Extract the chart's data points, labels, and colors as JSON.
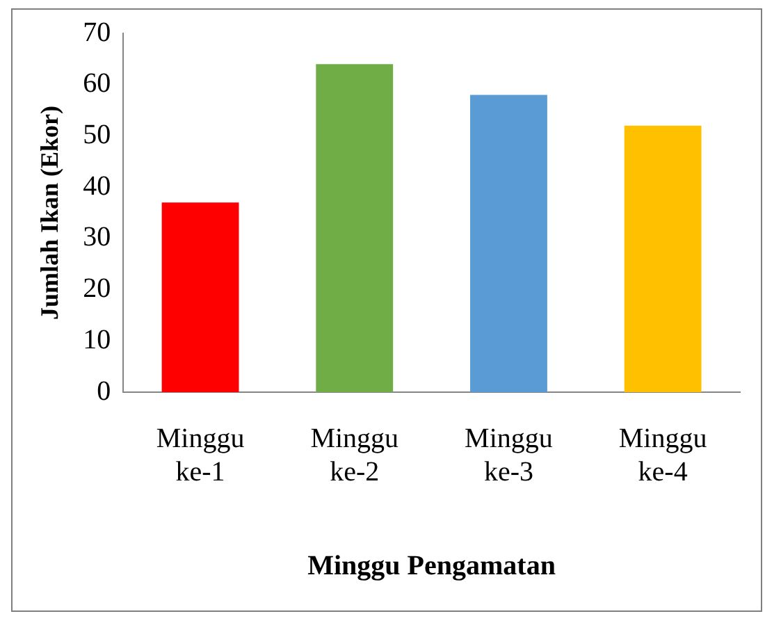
{
  "chart_data": {
    "type": "bar",
    "xlabel": "Minggu Pengamatan",
    "ylabel": "Jumlah Ikan (Ekor)",
    "categories": [
      "Minggu ke-1",
      "Minggu ke-2",
      "Minggu ke-3",
      "Minggu ke-4"
    ],
    "values": [
      37,
      64,
      58,
      52
    ],
    "colors": [
      "#ff0000",
      "#70ad47",
      "#5b9bd5",
      "#ffc000"
    ],
    "ylim": [
      0,
      70
    ],
    "yticks": [
      0,
      10,
      20,
      30,
      40,
      50,
      60,
      70
    ],
    "grid": false,
    "legend": false
  }
}
